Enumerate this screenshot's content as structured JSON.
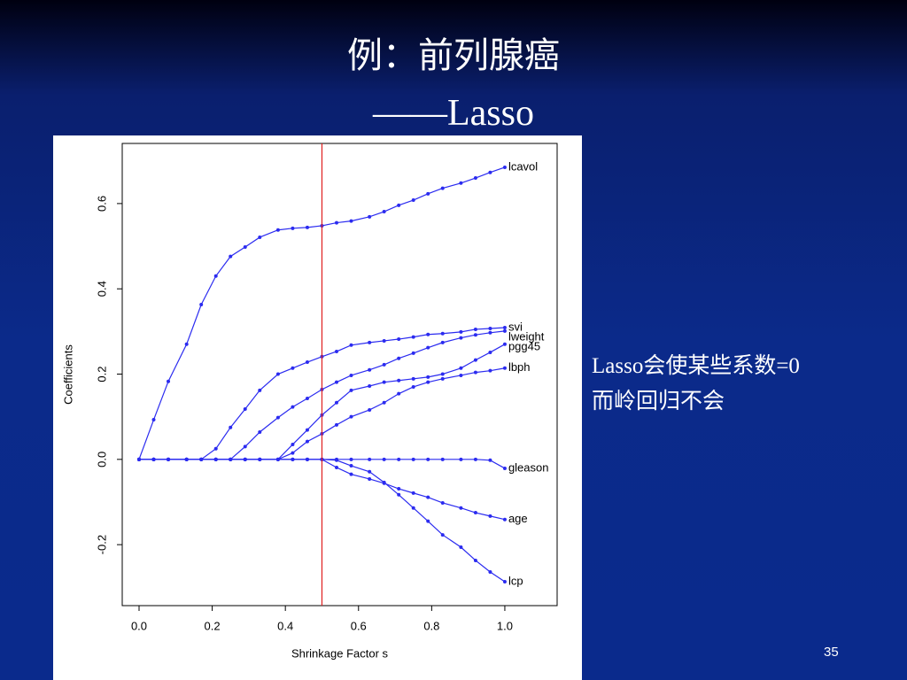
{
  "slide": {
    "title": "例：前列腺癌",
    "subtitle": "——Lasso",
    "note": [
      "Lasso会使某些系数=0",
      "而岭回归不会"
    ],
    "page_number": "35"
  },
  "chart_data": {
    "type": "line",
    "x_label": "Shrinkage Factor s",
    "y_label": "Coefficients",
    "x": [
      0,
      0.04,
      0.08,
      0.13,
      0.17,
      0.21,
      0.25,
      0.29,
      0.33,
      0.38,
      0.42,
      0.46,
      0.5,
      0.54,
      0.58,
      0.63,
      0.67,
      0.71,
      0.75,
      0.79,
      0.83,
      0.88,
      0.92,
      0.96,
      1.0
    ],
    "series": [
      {
        "name": "lcavol",
        "color": "#2b2bf0",
        "values": [
          0,
          0.093,
          0.183,
          0.27,
          0.363,
          0.43,
          0.476,
          0.498,
          0.521,
          0.538,
          0.542,
          0.544,
          0.548,
          0.555,
          0.559,
          0.569,
          0.581,
          0.596,
          0.608,
          0.623,
          0.636,
          0.648,
          0.66,
          0.673,
          0.685
        ]
      },
      {
        "name": "svi",
        "color": "#2b2bf0",
        "values": [
          0,
          0,
          0,
          0,
          0,
          0.025,
          0.075,
          0.118,
          0.162,
          0.2,
          0.214,
          0.228,
          0.241,
          0.253,
          0.268,
          0.274,
          0.278,
          0.282,
          0.287,
          0.293,
          0.295,
          0.299,
          0.305,
          0.307,
          0.309
        ]
      },
      {
        "name": "lweight",
        "color": "#2b2bf0",
        "values": [
          0,
          0,
          0,
          0,
          0,
          0,
          0,
          0.03,
          0.064,
          0.098,
          0.123,
          0.143,
          0.164,
          0.181,
          0.197,
          0.21,
          0.222,
          0.237,
          0.249,
          0.262,
          0.274,
          0.285,
          0.292,
          0.297,
          0.301
        ]
      },
      {
        "name": "pgg45",
        "color": "#2b2bf0",
        "values": [
          0,
          0,
          0,
          0,
          0,
          0,
          0,
          0,
          0,
          0,
          0.035,
          0.069,
          0.104,
          0.133,
          0.162,
          0.172,
          0.181,
          0.185,
          0.189,
          0.193,
          0.2,
          0.214,
          0.233,
          0.251,
          0.27
        ]
      },
      {
        "name": "lbph",
        "color": "#2b2bf0",
        "values": [
          0,
          0,
          0,
          0,
          0,
          0,
          0,
          0,
          0,
          0,
          0.015,
          0.042,
          0.06,
          0.081,
          0.1,
          0.116,
          0.133,
          0.154,
          0.17,
          0.181,
          0.189,
          0.197,
          0.204,
          0.208,
          0.214
        ]
      },
      {
        "name": "gleason",
        "color": "#2b2bf0",
        "values": [
          0,
          0,
          0,
          0,
          0,
          0,
          0,
          0,
          0,
          0,
          0,
          0,
          0,
          0,
          0,
          0,
          0,
          0,
          0,
          0,
          0,
          0,
          0,
          -0.002,
          -0.021
        ]
      },
      {
        "name": "age",
        "color": "#2b2bf0",
        "values": [
          0,
          0,
          0,
          0,
          0,
          0,
          0,
          0,
          0,
          0,
          0,
          0,
          0,
          -0.019,
          -0.035,
          -0.046,
          -0.056,
          -0.069,
          -0.079,
          -0.089,
          -0.102,
          -0.114,
          -0.125,
          -0.133,
          -0.141
        ]
      },
      {
        "name": "lcp",
        "color": "#2b2bf0",
        "values": [
          0,
          0,
          0,
          0,
          0,
          0,
          0,
          0,
          0,
          0,
          0,
          0,
          0,
          -0.002,
          -0.015,
          -0.029,
          -0.054,
          -0.083,
          -0.114,
          -0.145,
          -0.177,
          -0.206,
          -0.237,
          -0.264,
          -0.287
        ]
      }
    ],
    "xlim": [
      -0.046,
      1.143
    ],
    "ylim": [
      -0.343,
      0.741
    ],
    "xticks": [
      {
        "value": 0,
        "label": "0.0"
      },
      0.2,
      0.4,
      0.6,
      0.8,
      {
        "value": 1,
        "label": "1.0"
      }
    ],
    "yticks": [
      -0.2,
      {
        "value": 0,
        "label": "0.0"
      },
      0.2,
      0.4,
      0.6
    ],
    "vline": {
      "value": 0.5,
      "color": "#e02020"
    }
  }
}
